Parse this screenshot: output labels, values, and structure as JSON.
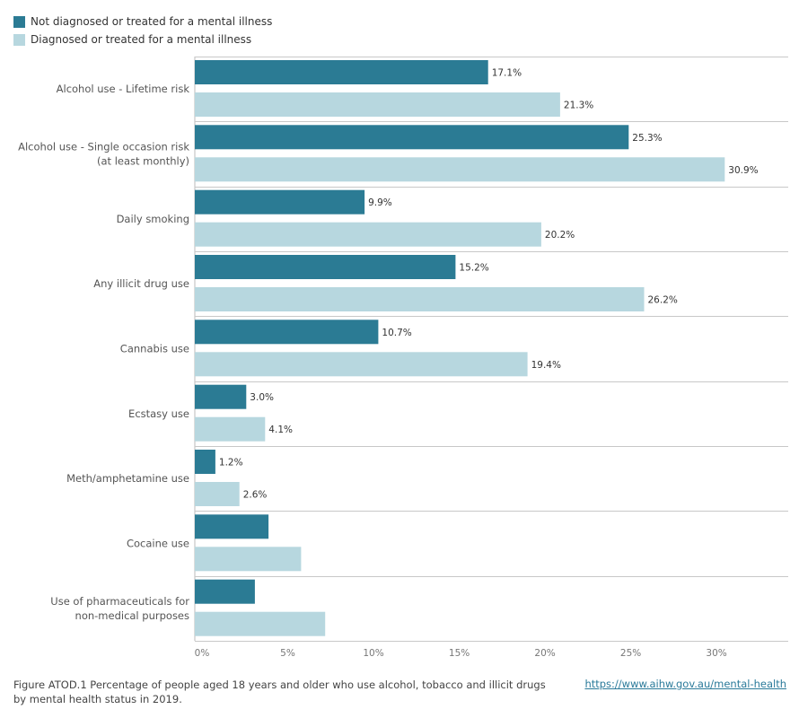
{
  "legend": {
    "items": [
      {
        "label": "Not diagnosed or treated for a mental illness",
        "color": "#2b7b94"
      },
      {
        "label": "Diagnosed or treated for a mental illness",
        "color": "#b7d7df"
      }
    ]
  },
  "chart_data": {
    "type": "bar",
    "orientation": "horizontal",
    "categories": [
      [
        "Alcohol use - Lifetime risk"
      ],
      [
        "Alcohol use - Single occasion risk",
        "(at least monthly)"
      ],
      [
        "Daily smoking"
      ],
      [
        "Any illicit drug use"
      ],
      [
        "Cannabis use"
      ],
      [
        "Ecstasy use"
      ],
      [
        "Meth/amphetamine use"
      ],
      [
        "Cocaine use"
      ],
      [
        "Use of pharmaceuticals for",
        "non-medical purposes"
      ]
    ],
    "series": [
      {
        "name": "Not diagnosed or treated for a mental illness",
        "color": "#2b7b94",
        "values": [
          17.1,
          25.3,
          9.9,
          15.2,
          10.7,
          3.0,
          1.2,
          4.3,
          3.5
        ],
        "labels": [
          "17.1%",
          "25.3%",
          "9.9%",
          "15.2%",
          "10.7%",
          "3.0%",
          "1.2%",
          "",
          ""
        ]
      },
      {
        "name": "Diagnosed or treated for a mental illness",
        "color": "#b7d7df",
        "values": [
          21.3,
          30.9,
          20.2,
          26.2,
          19.4,
          4.1,
          2.6,
          6.2,
          7.6
        ],
        "labels": [
          "21.3%",
          "30.9%",
          "20.2%",
          "26.2%",
          "19.4%",
          "4.1%",
          "2.6%",
          "",
          ""
        ]
      }
    ],
    "xlim": [
      0,
      34.6
    ],
    "xticks": [
      0,
      5,
      10,
      15,
      20,
      25,
      30
    ],
    "xtick_labels": [
      "0%",
      "5%",
      "10%",
      "15%",
      "20%",
      "25%",
      "30%"
    ],
    "grid": false,
    "legend_position": "top-left"
  },
  "caption": "Figure ATOD.1 Percentage of people aged 18 years and older who use alcohol, tobacco and illicit drugs by mental health status in 2019.",
  "source_link": "https://www.aihw.gov.au/mental-health"
}
